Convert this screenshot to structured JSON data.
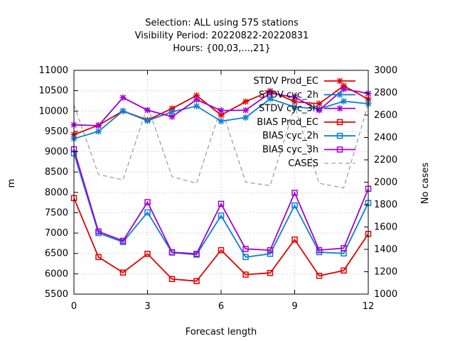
{
  "chart_data": {
    "type": "line",
    "title_lines": [
      "Selection: ALL using   575 stations",
      "Visibility   Period: 20220822-20220831",
      "Hours: {00,03,...,21}"
    ],
    "xlabel": "Forecast length",
    "ylabel": "m",
    "y2label": "No cases",
    "xlim": [
      0,
      12
    ],
    "ylim": [
      5500,
      11000
    ],
    "y2lim": [
      1000,
      3000
    ],
    "xticks": [
      0,
      3,
      6,
      9,
      12
    ],
    "yticks": [
      5500,
      6000,
      6500,
      7000,
      7500,
      8000,
      8500,
      9000,
      9500,
      10000,
      10500,
      11000
    ],
    "y2ticks": [
      1000,
      1200,
      1400,
      1600,
      1800,
      2000,
      2200,
      2400,
      2600,
      2800,
      3000
    ],
    "x": [
      0,
      1,
      2,
      3,
      4,
      5,
      6,
      7,
      8,
      9,
      10,
      11,
      12
    ],
    "grid": true,
    "legend_position": "top-right",
    "series": [
      {
        "name": "STDV Prod_EC",
        "color": "#e00000",
        "marker": "star",
        "values": [
          9420,
          9650,
          10000,
          9780,
          10060,
          10380,
          9900,
          10230,
          10490,
          10230,
          10180,
          10620,
          10290
        ]
      },
      {
        "name": "STDV cyc_2h",
        "color": "#0a7fd6",
        "marker": "star",
        "values": [
          9320,
          9500,
          10000,
          9760,
          9980,
          10120,
          9750,
          9840,
          10300,
          10100,
          10050,
          10240,
          10180
        ]
      },
      {
        "name": "STDV cyc_3h",
        "color": "#a000d0",
        "marker": "star",
        "values": [
          9660,
          9640,
          10330,
          10020,
          9860,
          10280,
          10010,
          10020,
          10440,
          10340,
          10020,
          10540,
          10430
        ]
      },
      {
        "name": "BIAS Prod_EC",
        "color": "#e00000",
        "marker": "square",
        "values": [
          7860,
          6410,
          6030,
          6490,
          5870,
          5820,
          6580,
          5980,
          6020,
          6840,
          5950,
          6080,
          6980
        ]
      },
      {
        "name": "BIAS cyc_2h",
        "color": "#0a7fd6",
        "marker": "square",
        "values": [
          8960,
          7000,
          6780,
          7510,
          6520,
          6470,
          7430,
          6410,
          6490,
          7680,
          6530,
          6500,
          7740
        ]
      },
      {
        "name": "BIAS cyc_3h",
        "color": "#a000d0",
        "marker": "square",
        "values": [
          9060,
          7040,
          6810,
          7760,
          6530,
          6490,
          7720,
          6610,
          6580,
          7990,
          6580,
          6630,
          8090
        ]
      },
      {
        "name": "CASES",
        "color": "#999999",
        "marker": "none",
        "dashed": true,
        "axis": "y2",
        "values": [
          2690,
          2070,
          2020,
          2680,
          2050,
          1990,
          2670,
          2000,
          1970,
          2680,
          1990,
          1950,
          2700
        ]
      }
    ]
  }
}
